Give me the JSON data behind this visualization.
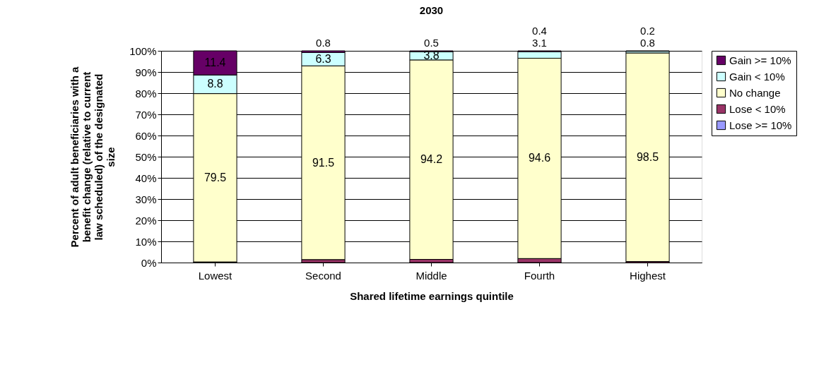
{
  "chart_data": {
    "type": "bar",
    "title": "2030",
    "xlabel": "Shared lifetime earnings quintile",
    "ylabel": "Percent of adult beneficiaries with a\nbenefit change (relative to current\nlaw scheduled) of the designated\nsize",
    "categories": [
      "Lowest",
      "Second",
      "Middle",
      "Fourth",
      "Highest"
    ],
    "stacked": true,
    "series": [
      {
        "name": "Lose >= 10%",
        "color": "#9999ff",
        "values": [
          0,
          0,
          0,
          0,
          0
        ],
        "value_labels": [
          null,
          null,
          null,
          null,
          null
        ]
      },
      {
        "name": "Lose < 10%",
        "color": "#993366",
        "values": [
          0.3,
          1.4,
          1.5,
          1.9,
          0.5
        ],
        "value_labels": [
          null,
          null,
          null,
          null,
          null
        ]
      },
      {
        "name": "No change",
        "color": "#ffffcc",
        "values": [
          79.5,
          91.5,
          94.2,
          94.6,
          98.5
        ],
        "value_labels": [
          "79.5",
          "91.5",
          "94.2",
          "94.6",
          "98.5"
        ]
      },
      {
        "name": "Gain < 10%",
        "color": "#ccffff",
        "values": [
          8.8,
          6.3,
          3.8,
          3.1,
          0.8
        ],
        "value_labels": [
          "8.8",
          "6.3",
          "3.8",
          "3.1",
          "0.8"
        ]
      },
      {
        "name": "Gain >= 10%",
        "color": "#660066",
        "values": [
          11.4,
          0.8,
          0.5,
          0.4,
          0.2
        ],
        "value_labels": [
          "11.4",
          "0.8",
          "0.5",
          "0.4",
          "0.2"
        ]
      }
    ],
    "ylim": [
      0,
      100
    ],
    "yticks": [
      {
        "value": 0,
        "label": "0%"
      },
      {
        "value": 10,
        "label": "10%"
      },
      {
        "value": 20,
        "label": "20%"
      },
      {
        "value": 30,
        "label": "30%"
      },
      {
        "value": 40,
        "label": "40%"
      },
      {
        "value": 50,
        "label": "50%"
      },
      {
        "value": 60,
        "label": "60%"
      },
      {
        "value": 70,
        "label": "70%"
      },
      {
        "value": 80,
        "label": "80%"
      },
      {
        "value": 90,
        "label": "90%"
      },
      {
        "value": 100,
        "label": "100%"
      }
    ],
    "grid": "y",
    "legend": "right"
  }
}
